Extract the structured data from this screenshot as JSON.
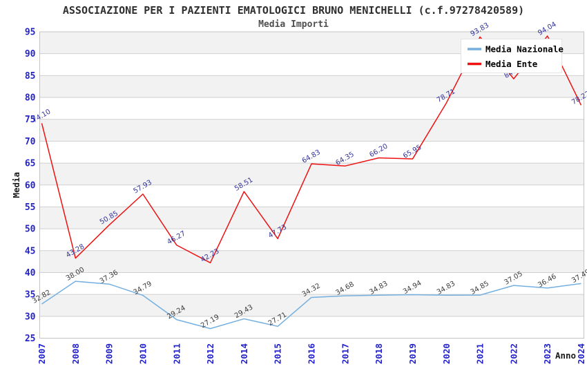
{
  "chart": {
    "background": "#ffffff",
    "plot_style": {
      "band_color": "#f2f2f2",
      "grid_color": "#cfcfcf",
      "border_color": "#c4c4c4",
      "legend_bg": "#ffffff",
      "legend_border": "#e3e3e3"
    },
    "text_colors": {
      "title": "#2f2f2f",
      "subtitle": "#4f4f4f",
      "axis_title": "#1a1a1a",
      "tick_label": "#2222cc",
      "legend_label": "#000000"
    }
  },
  "chart_data": {
    "type": "line",
    "title": "ASSOCIAZIONE PER I PAZIENTI EMATOLOGICI BRUNO MENICHELLI (c.f.97278420589)",
    "subtitle": "Media Importi",
    "xlabel": "Anno",
    "ylabel": "Media",
    "ylim": [
      25,
      95
    ],
    "ytick_step": 5,
    "grid": "horizontal-bands-alternating",
    "legend_position": "top-right-overlay",
    "categories": [
      "2007",
      "2008",
      "2009",
      "2010",
      "2011",
      "2012",
      "2014",
      "2015",
      "2016",
      "2017",
      "2018",
      "2019",
      "2020",
      "2021",
      "2022",
      "2023",
      "2024"
    ],
    "series": [
      {
        "name": "Media Nazionale",
        "color": "#74afe0",
        "label_color": "#3b3b3b",
        "values": [
          32.82,
          38.0,
          37.36,
          34.79,
          29.24,
          27.19,
          29.43,
          27.71,
          34.32,
          34.68,
          34.83,
          34.94,
          34.83,
          34.85,
          37.05,
          36.46,
          37.49
        ]
      },
      {
        "name": "Media Ente",
        "color": "#ee1111",
        "label_color": "#333399",
        "values": [
          74.1,
          43.28,
          50.85,
          57.93,
          46.27,
          42.23,
          58.51,
          47.73,
          64.83,
          64.35,
          66.2,
          65.95,
          78.71,
          93.83,
          84.25,
          94.04,
          78.22
        ]
      }
    ]
  }
}
